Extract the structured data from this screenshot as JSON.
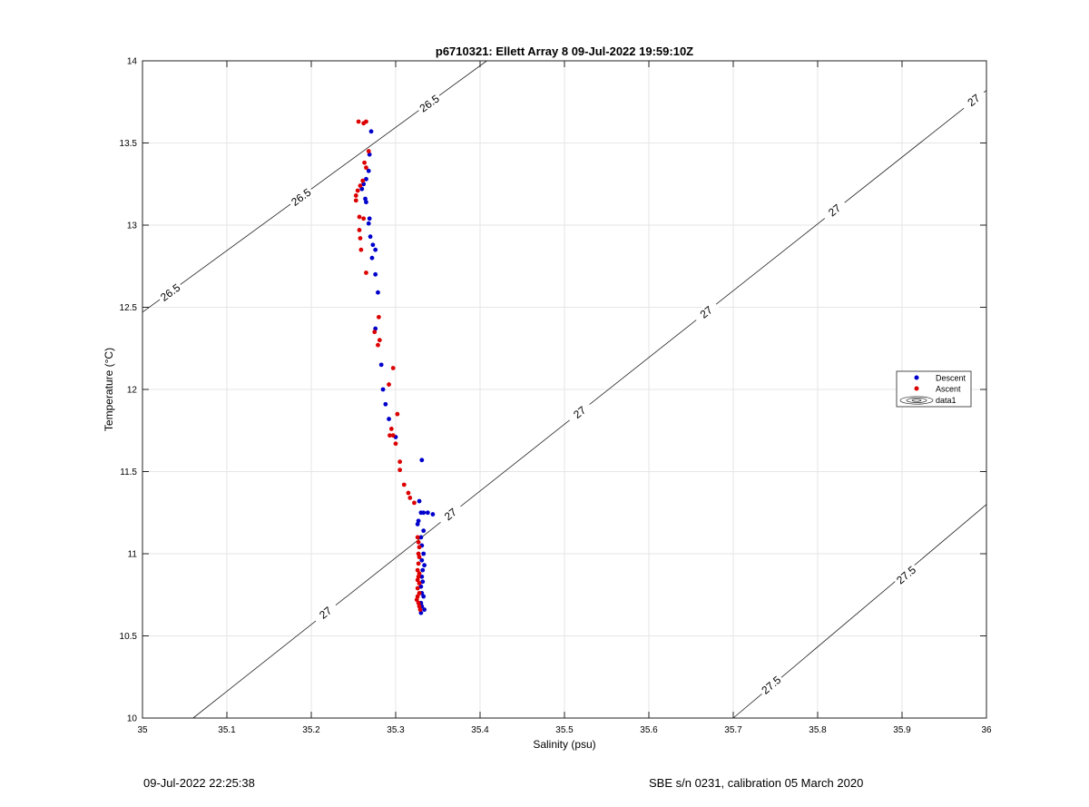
{
  "chart_data": {
    "type": "scatter",
    "title": "p6710321: Ellett Array 8 09-Jul-2022 19:59:10Z",
    "xlabel": "Salinity (psu)",
    "ylabel": "Temperature (°C)",
    "xlim": [
      35,
      36
    ],
    "ylim": [
      10,
      14
    ],
    "xticks": [
      35,
      35.1,
      35.2,
      35.3,
      35.4,
      35.5,
      35.6,
      35.7,
      35.8,
      35.9,
      36
    ],
    "xtick_labels": [
      "35",
      "35.1",
      "35.2",
      "35.3",
      "35.4",
      "35.5",
      "35.6",
      "35.7",
      "35.8",
      "35.9",
      "36"
    ],
    "yticks": [
      10,
      10.5,
      11,
      11.5,
      12,
      12.5,
      13,
      13.5,
      14
    ],
    "ytick_labels": [
      "10",
      "10.5",
      "11",
      "11.5",
      "12",
      "12.5",
      "13",
      "13.5",
      "14"
    ],
    "grid": true,
    "legend_position": "right",
    "legend": [
      "Descent",
      "Ascent",
      "data1"
    ],
    "series": [
      {
        "name": "Descent",
        "color": "#0000cc",
        "points": [
          [
            35.271,
            13.57
          ],
          [
            35.269,
            13.43
          ],
          [
            35.268,
            13.33
          ],
          [
            35.265,
            13.28
          ],
          [
            35.262,
            13.25
          ],
          [
            35.26,
            13.22
          ],
          [
            35.264,
            13.16
          ],
          [
            35.265,
            13.14
          ],
          [
            35.269,
            13.04
          ],
          [
            35.268,
            13.01
          ],
          [
            35.27,
            12.93
          ],
          [
            35.273,
            12.88
          ],
          [
            35.276,
            12.85
          ],
          [
            35.272,
            12.8
          ],
          [
            35.276,
            12.7
          ],
          [
            35.279,
            12.59
          ],
          [
            35.276,
            12.37
          ],
          [
            35.283,
            12.15
          ],
          [
            35.285,
            12.0
          ],
          [
            35.288,
            11.91
          ],
          [
            35.292,
            11.82
          ],
          [
            35.3,
            11.71
          ],
          [
            35.331,
            11.57
          ],
          [
            35.328,
            11.32
          ],
          [
            35.33,
            11.25
          ],
          [
            35.333,
            11.25
          ],
          [
            35.338,
            11.25
          ],
          [
            35.344,
            11.24
          ],
          [
            35.327,
            11.2
          ],
          [
            35.326,
            11.18
          ],
          [
            35.333,
            11.14
          ],
          [
            35.33,
            11.1
          ],
          [
            35.331,
            11.05
          ],
          [
            35.333,
            11.0
          ],
          [
            35.331,
            10.96
          ],
          [
            35.334,
            10.93
          ],
          [
            35.332,
            10.9
          ],
          [
            35.331,
            10.86
          ],
          [
            35.332,
            10.83
          ],
          [
            35.33,
            10.8
          ],
          [
            35.331,
            10.76
          ],
          [
            35.333,
            10.74
          ],
          [
            35.33,
            10.7
          ],
          [
            35.331,
            10.68
          ],
          [
            35.334,
            10.66
          ],
          [
            35.33,
            10.64
          ]
        ]
      },
      {
        "name": "Ascent",
        "color": "#dd0000",
        "points": [
          [
            35.256,
            13.63
          ],
          [
            35.262,
            13.62
          ],
          [
            35.265,
            13.63
          ],
          [
            35.268,
            13.45
          ],
          [
            35.263,
            13.38
          ],
          [
            35.265,
            13.35
          ],
          [
            35.261,
            13.27
          ],
          [
            35.258,
            13.24
          ],
          [
            35.255,
            13.21
          ],
          [
            35.253,
            13.18
          ],
          [
            35.253,
            13.15
          ],
          [
            35.257,
            13.05
          ],
          [
            35.262,
            13.04
          ],
          [
            35.257,
            12.97
          ],
          [
            35.258,
            12.92
          ],
          [
            35.259,
            12.85
          ],
          [
            35.265,
            12.71
          ],
          [
            35.28,
            12.44
          ],
          [
            35.275,
            12.35
          ],
          [
            35.281,
            12.3
          ],
          [
            35.279,
            12.27
          ],
          [
            35.297,
            12.13
          ],
          [
            35.292,
            12.03
          ],
          [
            35.302,
            11.85
          ],
          [
            35.295,
            11.76
          ],
          [
            35.293,
            11.72
          ],
          [
            35.297,
            11.72
          ],
          [
            35.3,
            11.67
          ],
          [
            35.305,
            11.56
          ],
          [
            35.305,
            11.51
          ],
          [
            35.31,
            11.42
          ],
          [
            35.315,
            11.37
          ],
          [
            35.317,
            11.34
          ],
          [
            35.322,
            11.31
          ],
          [
            35.326,
            11.1
          ],
          [
            35.327,
            11.07
          ],
          [
            35.328,
            11.04
          ],
          [
            35.327,
            11.0
          ],
          [
            35.328,
            10.98
          ],
          [
            35.327,
            10.94
          ],
          [
            35.326,
            10.9
          ],
          [
            35.328,
            10.88
          ],
          [
            35.327,
            10.86
          ],
          [
            35.326,
            10.84
          ],
          [
            35.328,
            10.82
          ],
          [
            35.326,
            10.79
          ],
          [
            35.328,
            10.76
          ],
          [
            35.326,
            10.74
          ],
          [
            35.325,
            10.72
          ],
          [
            35.327,
            10.7
          ],
          [
            35.328,
            10.68
          ],
          [
            35.329,
            10.66
          ]
        ]
      }
    ],
    "contours": [
      {
        "level_label": "26.5",
        "line": [
          [
            35.0,
            12.47
          ],
          [
            35.408,
            14.0
          ]
        ],
        "label_positions": [
          [
            35.033,
            12.59
          ],
          [
            35.188,
            13.17
          ],
          [
            35.34,
            13.74
          ]
        ]
      },
      {
        "level_label": "27",
        "line": [
          [
            35.06,
            10.0
          ],
          [
            36.0,
            13.82
          ]
        ],
        "label_positions": [
          [
            35.217,
            10.64
          ],
          [
            35.365,
            11.24
          ],
          [
            35.518,
            11.86
          ],
          [
            35.668,
            12.47
          ],
          [
            35.82,
            13.09
          ],
          [
            35.985,
            13.76
          ]
        ]
      },
      {
        "level_label": "27.5",
        "line": [
          [
            35.7,
            10.0
          ],
          [
            36.0,
            11.3
          ]
        ],
        "label_positions": [
          [
            35.745,
            10.2
          ],
          [
            35.905,
            10.87
          ]
        ]
      }
    ]
  },
  "footer": {
    "left": "09-Jul-2022 22:25:38",
    "right": "SBE s/n 0231, calibration 05 March 2020"
  }
}
